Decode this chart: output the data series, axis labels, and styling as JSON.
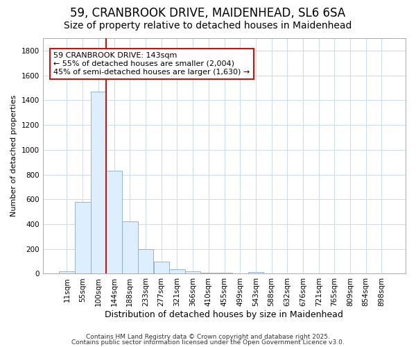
{
  "title1": "59, CRANBROOK DRIVE, MAIDENHEAD, SL6 6SA",
  "title2": "Size of property relative to detached houses in Maidenhead",
  "xlabel": "Distribution of detached houses by size in Maidenhead",
  "ylabel": "Number of detached properties",
  "bin_labels": [
    "11sqm",
    "55sqm",
    "100sqm",
    "144sqm",
    "188sqm",
    "233sqm",
    "277sqm",
    "321sqm",
    "366sqm",
    "410sqm",
    "455sqm",
    "499sqm",
    "543sqm",
    "588sqm",
    "632sqm",
    "676sqm",
    "721sqm",
    "765sqm",
    "809sqm",
    "854sqm",
    "898sqm"
  ],
  "bar_values": [
    20,
    580,
    1470,
    830,
    420,
    200,
    100,
    35,
    20,
    10,
    10,
    0,
    15,
    0,
    0,
    0,
    0,
    0,
    0,
    0,
    0
  ],
  "bar_color": "#ddeeff",
  "bar_edge_color": "#88aacc",
  "vline_color": "#cc1111",
  "annotation_text": "59 CRANBROOK DRIVE: 143sqm\n← 55% of detached houses are smaller (2,004)\n45% of semi-detached houses are larger (1,630) →",
  "annotation_box_facecolor": "#ffffff",
  "annotation_box_edge": "#cc1111",
  "ylim": [
    0,
    1900
  ],
  "yticks": [
    0,
    200,
    400,
    600,
    800,
    1000,
    1200,
    1400,
    1600,
    1800
  ],
  "footer1": "Contains HM Land Registry data © Crown copyright and database right 2025.",
  "footer2": "Contains public sector information licensed under the Open Government Licence v3.0.",
  "bg_color": "#ffffff",
  "plot_bg_color": "#ffffff",
  "grid_color": "#ccddee",
  "title1_fontsize": 12,
  "title2_fontsize": 10,
  "xlabel_fontsize": 9,
  "ylabel_fontsize": 8,
  "tick_fontsize": 7.5,
  "annotation_fontsize": 8,
  "footer_fontsize": 6.5
}
